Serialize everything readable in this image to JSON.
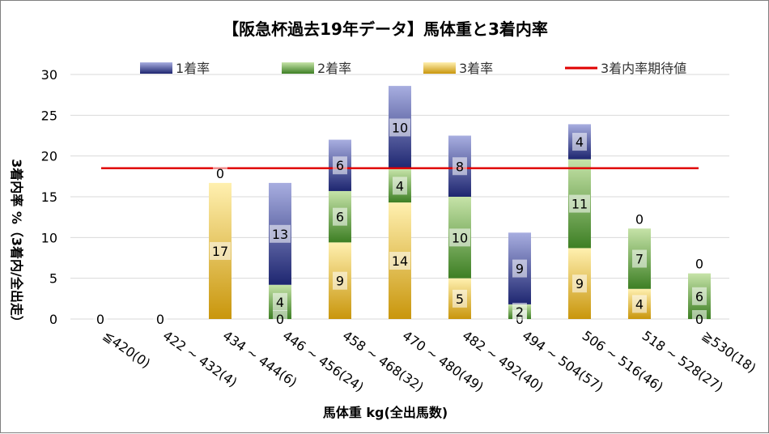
{
  "chart_data": {
    "type": "bar",
    "stacked": true,
    "title": "【阪急杯過去19年データ】馬体重と3着内率",
    "xlabel": "馬体重 kg(全出馬数)",
    "ylabel": "3着内率 %（3着内/全出走）",
    "ylim": [
      0,
      30
    ],
    "yticks": [
      "0",
      "5",
      "10",
      "15",
      "20",
      "25",
      "30"
    ],
    "grid": true,
    "legend_position": "top",
    "categories": [
      "≦420(0)",
      "422 ~ 432(4)",
      "434 ~ 444(6)",
      "446 ~ 456(24)",
      "458 ~ 468(32)",
      "470 ~ 480(49)",
      "482 ~ 492(40)",
      "494 ~ 504(57)",
      "506 ~ 516(46)",
      "518 ~ 528(27)",
      "≧530(18)"
    ],
    "series": [
      {
        "name": "3着率",
        "color": "#d4a017",
        "values": [
          0,
          0,
          16.7,
          0,
          9.4,
          14.3,
          5.0,
          0,
          8.7,
          3.7,
          0
        ],
        "labels": [
          "",
          "",
          "17",
          "0",
          "9",
          "14",
          "5",
          "0",
          "9",
          "4",
          "0"
        ]
      },
      {
        "name": "2着率",
        "color": "#5e9c3a",
        "values": [
          0,
          0,
          0,
          4.2,
          6.3,
          4.1,
          10.0,
          1.8,
          10.9,
          7.4,
          5.6
        ],
        "labels": [
          "",
          "",
          "",
          "4",
          "6",
          "4",
          "10",
          "2",
          "11",
          "7",
          "6"
        ]
      },
      {
        "name": "1着率",
        "color": "#2e3a87",
        "values": [
          0,
          0,
          0,
          12.5,
          6.3,
          10.2,
          7.5,
          8.8,
          4.3,
          0,
          0
        ],
        "labels": [
          "0",
          "0",
          "0",
          "13",
          "6",
          "10",
          "8",
          "9",
          "4",
          "0",
          "0"
        ]
      }
    ],
    "reference_line": {
      "name": "3着内率期待値",
      "value": 18.5,
      "color": "#e00000"
    }
  }
}
